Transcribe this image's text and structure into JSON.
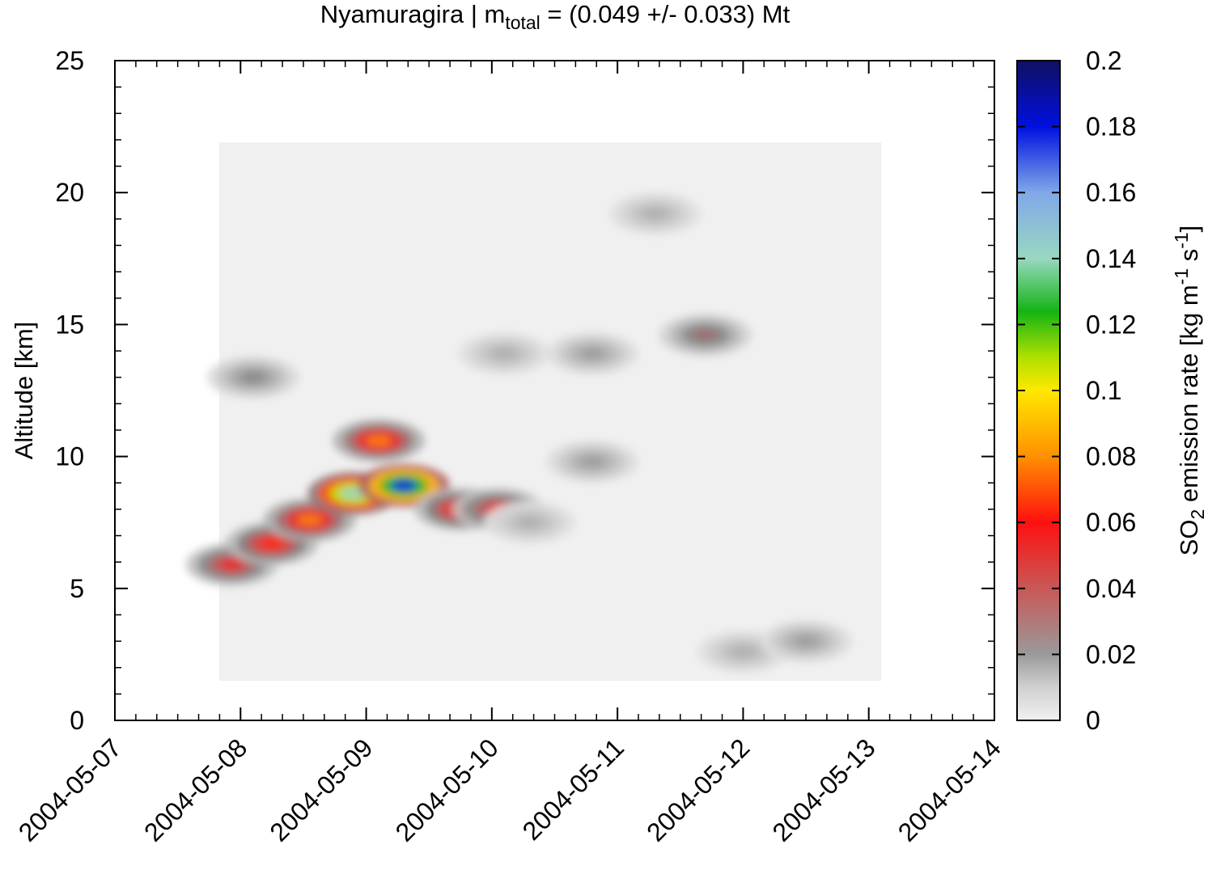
{
  "chart_data": {
    "type": "heatmap",
    "title": {
      "volcano": "Nyamuragira",
      "separator": " | ",
      "symbol": "m",
      "subscript": "total",
      "value": " = (0.049 +/- 0.033) Mt"
    },
    "xlabel": "",
    "ylabel": "Altitude [km]",
    "colorbar_label": {
      "prefix": "SO",
      "sub": "2",
      "mid": " emission rate [kg m",
      "sup1": "-1",
      "mid2": " s",
      "sup2": "-1",
      "suffix": "]"
    },
    "x_ticks": [
      "2004-05-07",
      "2004-05-08",
      "2004-05-09",
      "2004-05-10",
      "2004-05-11",
      "2004-05-12",
      "2004-05-13",
      "2004-05-14"
    ],
    "y_ticks": [
      "0",
      "5",
      "10",
      "15",
      "20",
      "25"
    ],
    "colorbar_ticks": [
      "0",
      "0.02",
      "0.04",
      "0.06",
      "0.08",
      "0.1",
      "0.12",
      "0.14",
      "0.16",
      "0.18",
      "0.2"
    ],
    "xlim": [
      "2004-05-07",
      "2004-05-14"
    ],
    "ylim": [
      0,
      25
    ],
    "clim": [
      0,
      0.2
    ],
    "data_extent": {
      "x": [
        0.83,
        6.1
      ],
      "y": [
        1.5,
        21.9
      ],
      "units": "days since 2004-05-07 / km"
    },
    "colormap": [
      "#f0f0f0",
      "#bcbcbc",
      "#7e7e7e",
      "#c85858",
      "#ff1010",
      "#ff9600",
      "#ffe800",
      "#b0e000",
      "#14b414",
      "#98d8c0",
      "#80a8e8",
      "#0010e0",
      "#101060"
    ],
    "grid": false,
    "plumes": [
      {
        "x": 0.93,
        "y": 5.9,
        "peak": 0.06
      },
      {
        "x": 1.25,
        "y": 6.7,
        "peak": 0.07
      },
      {
        "x": 1.55,
        "y": 7.6,
        "peak": 0.08
      },
      {
        "x": 1.9,
        "y": 8.6,
        "peak": 0.15
      },
      {
        "x": 2.3,
        "y": 8.9,
        "peak": 0.18
      },
      {
        "x": 2.1,
        "y": 10.6,
        "peak": 0.08
      },
      {
        "x": 2.75,
        "y": 8.0,
        "peak": 0.07
      },
      {
        "x": 3.05,
        "y": 8.0,
        "peak": 0.06
      },
      {
        "x": 1.1,
        "y": 13.0,
        "peak": 0.03
      },
      {
        "x": 3.1,
        "y": 13.9,
        "peak": 0.02
      },
      {
        "x": 3.8,
        "y": 13.9,
        "peak": 0.025
      },
      {
        "x": 4.7,
        "y": 14.6,
        "peak": 0.04
      },
      {
        "x": 4.3,
        "y": 19.2,
        "peak": 0.02
      },
      {
        "x": 5.0,
        "y": 2.6,
        "peak": 0.02
      },
      {
        "x": 5.5,
        "y": 3.0,
        "peak": 0.025
      },
      {
        "x": 3.3,
        "y": 7.5,
        "peak": 0.02
      },
      {
        "x": 3.8,
        "y": 9.8,
        "peak": 0.025
      }
    ]
  }
}
